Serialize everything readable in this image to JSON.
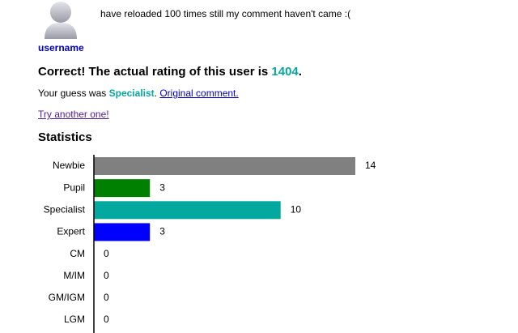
{
  "post": {
    "username": "username",
    "comment": "have reloaded 100 times still my comment haven't came :("
  },
  "result": {
    "prefix": "Correct! The actual rating of this user is",
    "rating": 1404,
    "suffix": "."
  },
  "guess": {
    "prefix": "Your guess was",
    "rank": "Specialist",
    "suffix": ".",
    "link": "Original comment."
  },
  "retry": "Try another one!",
  "chart_data": {
    "type": "hbar",
    "title": "Statistics",
    "categories": [
      "Newbie",
      "Pupil",
      "Specialist",
      "Expert",
      "CM",
      "M/IM",
      "GM/IGM",
      "LGM"
    ],
    "values": [
      14,
      3,
      10,
      3,
      0,
      0,
      0,
      0
    ],
    "colors": [
      "#808080",
      "#008000",
      "#03a89e",
      "#0000ff",
      "#aa00aa",
      "#ff8c00",
      "#ff0000",
      "#ff0000"
    ]
  }
}
